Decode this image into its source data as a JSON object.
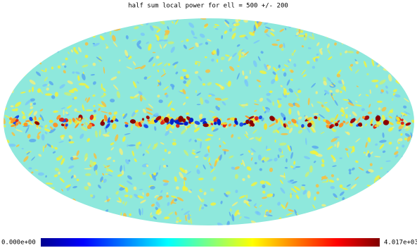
{
  "title": "half sum local power for ell = 500 +/- 200",
  "colorbar": {
    "min_label": "0.000e+00",
    "max_label": "4.017e+03"
  }
}
